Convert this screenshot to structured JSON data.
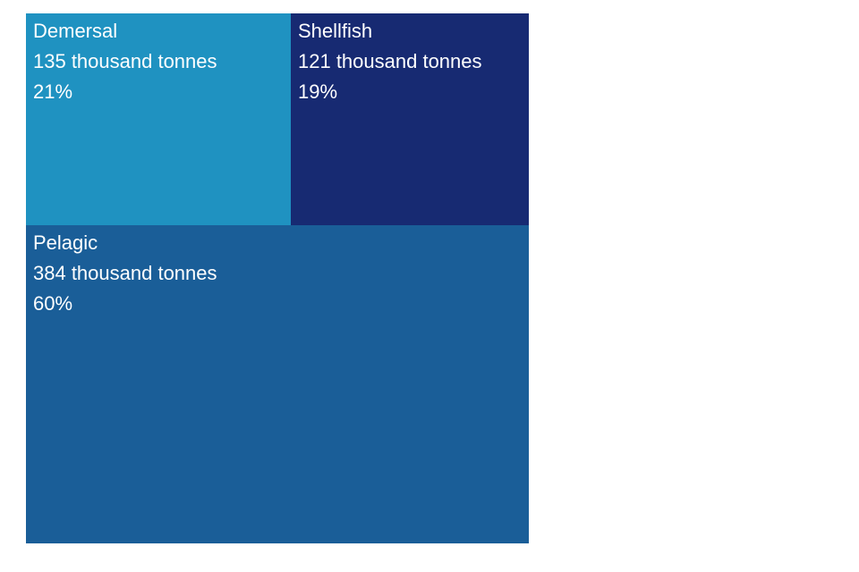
{
  "chart_data": {
    "type": "treemap",
    "title": "",
    "unit": "thousand tonnes",
    "nodes": [
      {
        "name": "Demersal",
        "value": 135,
        "value_label": "135 thousand tonnes",
        "share_label": "21%",
        "color": "#1f92c1"
      },
      {
        "name": "Shellfish",
        "value": 121,
        "value_label": "121 thousand tonnes",
        "share_label": "19%",
        "color": "#172a72"
      },
      {
        "name": "Pelagic",
        "value": 384,
        "value_label": "384 thousand tonnes",
        "share_label": "60%",
        "color": "#1a5e98"
      }
    ]
  }
}
